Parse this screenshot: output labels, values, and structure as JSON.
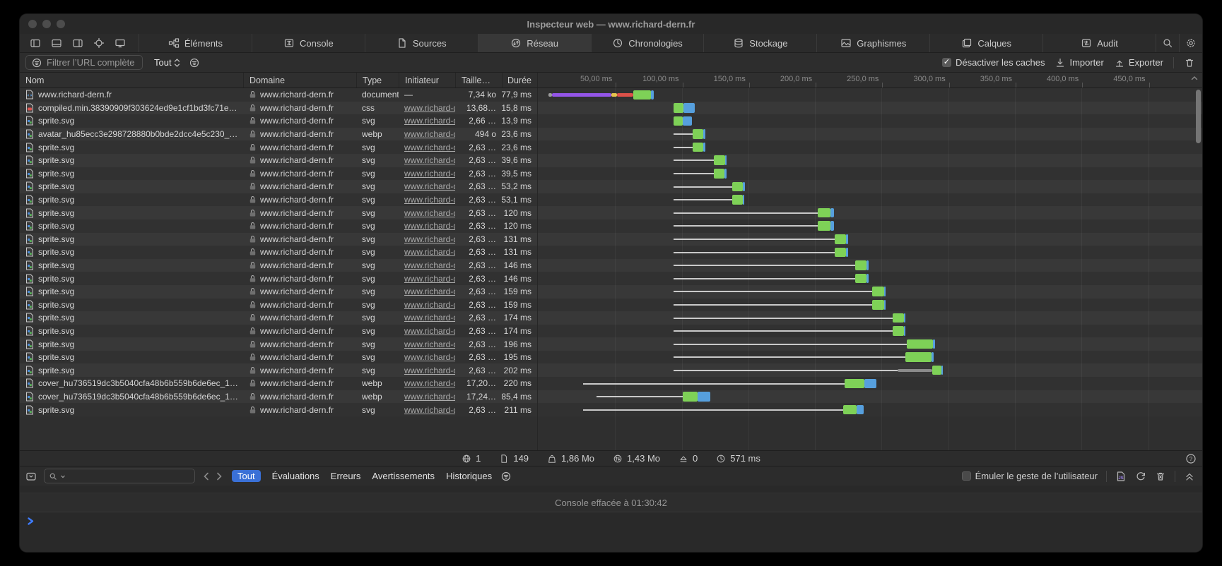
{
  "window": {
    "title": "Inspecteur web — www.richard-dern.fr"
  },
  "tabs": {
    "active": "Réseau",
    "items": [
      {
        "label": "Éléments",
        "icon": "elements-icon"
      },
      {
        "label": "Console",
        "icon": "console-icon"
      },
      {
        "label": "Sources",
        "icon": "sources-icon"
      },
      {
        "label": "Réseau",
        "icon": "network-icon"
      },
      {
        "label": "Chronologies",
        "icon": "timelines-icon"
      },
      {
        "label": "Stockage",
        "icon": "storage-icon"
      },
      {
        "label": "Graphismes",
        "icon": "graphics-icon"
      },
      {
        "label": "Calques",
        "icon": "layers-icon"
      },
      {
        "label": "Audit",
        "icon": "audit-icon"
      }
    ]
  },
  "network_toolbar": {
    "filter_placeholder": "Filtrer l’URL complète",
    "type_filter": "Tout",
    "disable_caches_label": "Désactiver les caches",
    "disable_caches_checked": "✓",
    "import_label": "Importer",
    "export_label": "Exporter"
  },
  "table": {
    "columns": {
      "name": "Nom",
      "domain": "Domaine",
      "type": "Type",
      "initiator": "Initiateur",
      "size": "Taille…",
      "duration": "Durée"
    },
    "ruler_ticks": [
      "50,00 ms",
      "100,00 ms",
      "150,0 ms",
      "200,0 ms",
      "250,0 ms",
      "300,0 ms",
      "350,0 ms",
      "400,0 ms",
      "450,0 ms"
    ],
    "rows": [
      {
        "name": "www.richard-dern.fr",
        "icon": "file-html-icon",
        "domain": "www.richard-dern.fr",
        "type": "document",
        "initiator": "—",
        "initiator_link": false,
        "size": "7,34 ko",
        "duration": "77,9 ms",
        "waterfall": [
          [
            "gray",
            0,
            2.5
          ],
          [
            "purple",
            2.5,
            47
          ],
          [
            "yellow",
            47,
            51.5
          ],
          [
            "red",
            51.5,
            63.5
          ],
          [
            "green",
            63.5,
            77
          ],
          [
            "blue",
            77,
            79
          ]
        ]
      },
      {
        "name": "compiled.min.38390909f303624ed9e1cf1bd3fc71e…",
        "icon": "file-css-icon",
        "domain": "www.richard-dern.fr",
        "type": "css",
        "initiator": "www.richard-d…",
        "initiator_link": true,
        "size": "13,68…",
        "duration": "15,8 ms",
        "waterfall": [
          [
            "green",
            94,
            101.5
          ],
          [
            "blue",
            101.5,
            109.8
          ]
        ]
      },
      {
        "name": "sprite.svg",
        "icon": "file-img-icon",
        "domain": "www.richard-dern.fr",
        "type": "svg",
        "initiator": "www.richard-d…",
        "initiator_link": true,
        "size": "2,66 …",
        "duration": "13,9 ms",
        "waterfall": [
          [
            "green",
            94,
            100.5
          ],
          [
            "blue",
            100.5,
            107.9
          ]
        ]
      },
      {
        "name": "avatar_hu85ecc3e298728880b0bde2dcc4e5c230_…",
        "icon": "file-img-icon",
        "domain": "www.richard-dern.fr",
        "type": "webp",
        "initiator": "www.richard-d…",
        "initiator_link": true,
        "size": "494 o",
        "duration": "23,6 ms",
        "waterfall": [
          [
            "line",
            94,
            108
          ],
          [
            "green",
            108,
            116
          ],
          [
            "blue",
            116,
            117.6
          ]
        ]
      },
      {
        "name": "sprite.svg",
        "icon": "file-img-icon",
        "domain": "www.richard-dern.fr",
        "type": "svg",
        "initiator": "www.richard-d…",
        "initiator_link": true,
        "size": "2,63 …",
        "duration": "23,6 ms",
        "waterfall": [
          [
            "line",
            94,
            108
          ],
          [
            "green",
            108,
            116
          ],
          [
            "blue",
            116,
            117.6
          ]
        ]
      },
      {
        "name": "sprite.svg",
        "icon": "file-img-icon",
        "domain": "www.richard-dern.fr",
        "type": "svg",
        "initiator": "www.richard-d…",
        "initiator_link": true,
        "size": "2,63 …",
        "duration": "39,6 ms",
        "waterfall": [
          [
            "line",
            94,
            124
          ],
          [
            "green",
            124,
            132.4
          ],
          [
            "blue",
            132.4,
            133.6
          ]
        ]
      },
      {
        "name": "sprite.svg",
        "icon": "file-img-icon",
        "domain": "www.richard-dern.fr",
        "type": "svg",
        "initiator": "www.richard-d…",
        "initiator_link": true,
        "size": "2,63 …",
        "duration": "39,5 ms",
        "waterfall": [
          [
            "line",
            94,
            124
          ],
          [
            "green",
            124,
            132.3
          ],
          [
            "blue",
            132.3,
            133.5
          ]
        ]
      },
      {
        "name": "sprite.svg",
        "icon": "file-img-icon",
        "domain": "www.richard-dern.fr",
        "type": "svg",
        "initiator": "www.richard-d…",
        "initiator_link": true,
        "size": "2,63 …",
        "duration": "53,2 ms",
        "waterfall": [
          [
            "line",
            94,
            138
          ],
          [
            "green",
            138,
            146
          ],
          [
            "blue",
            146,
            147.2
          ]
        ]
      },
      {
        "name": "sprite.svg",
        "icon": "file-img-icon",
        "domain": "www.richard-dern.fr",
        "type": "svg",
        "initiator": "www.richard-d…",
        "initiator_link": true,
        "size": "2,63 …",
        "duration": "53,1 ms",
        "waterfall": [
          [
            "line",
            94,
            138
          ],
          [
            "green",
            138,
            146
          ],
          [
            "blue",
            146,
            147.1
          ]
        ]
      },
      {
        "name": "sprite.svg",
        "icon": "file-img-icon",
        "domain": "www.richard-dern.fr",
        "type": "svg",
        "initiator": "www.richard-d…",
        "initiator_link": true,
        "size": "2,63 …",
        "duration": "120 ms",
        "waterfall": [
          [
            "line",
            94,
            202
          ],
          [
            "green",
            202,
            211.8
          ],
          [
            "blue",
            211.8,
            214
          ]
        ]
      },
      {
        "name": "sprite.svg",
        "icon": "file-img-icon",
        "domain": "www.richard-dern.fr",
        "type": "svg",
        "initiator": "www.richard-d…",
        "initiator_link": true,
        "size": "2,63 …",
        "duration": "120 ms",
        "waterfall": [
          [
            "line",
            94,
            202
          ],
          [
            "green",
            202,
            211.8
          ],
          [
            "blue",
            211.8,
            214
          ]
        ]
      },
      {
        "name": "sprite.svg",
        "icon": "file-img-icon",
        "domain": "www.richard-dern.fr",
        "type": "svg",
        "initiator": "www.richard-d…",
        "initiator_link": true,
        "size": "2,63 …",
        "duration": "131 ms",
        "waterfall": [
          [
            "line",
            94,
            215
          ],
          [
            "green",
            215,
            223.5
          ],
          [
            "blue",
            223.5,
            225
          ]
        ]
      },
      {
        "name": "sprite.svg",
        "icon": "file-img-icon",
        "domain": "www.richard-dern.fr",
        "type": "svg",
        "initiator": "www.richard-d…",
        "initiator_link": true,
        "size": "2,63 …",
        "duration": "131 ms",
        "waterfall": [
          [
            "line",
            94,
            215
          ],
          [
            "green",
            215,
            223.5
          ],
          [
            "blue",
            223.5,
            225
          ]
        ]
      },
      {
        "name": "sprite.svg",
        "icon": "file-img-icon",
        "domain": "www.richard-dern.fr",
        "type": "svg",
        "initiator": "www.richard-d…",
        "initiator_link": true,
        "size": "2,63 …",
        "duration": "146 ms",
        "waterfall": [
          [
            "line",
            94,
            230
          ],
          [
            "green",
            230,
            238.8
          ],
          [
            "blue",
            238.8,
            240
          ]
        ]
      },
      {
        "name": "sprite.svg",
        "icon": "file-img-icon",
        "domain": "www.richard-dern.fr",
        "type": "svg",
        "initiator": "www.richard-d…",
        "initiator_link": true,
        "size": "2,63 …",
        "duration": "146 ms",
        "waterfall": [
          [
            "line",
            94,
            230
          ],
          [
            "green",
            230,
            238.8
          ],
          [
            "blue",
            238.8,
            240
          ]
        ]
      },
      {
        "name": "sprite.svg",
        "icon": "file-img-icon",
        "domain": "www.richard-dern.fr",
        "type": "svg",
        "initiator": "www.richard-d…",
        "initiator_link": true,
        "size": "2,63 …",
        "duration": "159 ms",
        "waterfall": [
          [
            "line",
            94,
            243
          ],
          [
            "green",
            243,
            251.8
          ],
          [
            "blue",
            251.8,
            253
          ]
        ]
      },
      {
        "name": "sprite.svg",
        "icon": "file-img-icon",
        "domain": "www.richard-dern.fr",
        "type": "svg",
        "initiator": "www.richard-d…",
        "initiator_link": true,
        "size": "2,63 …",
        "duration": "159 ms",
        "waterfall": [
          [
            "line",
            94,
            243
          ],
          [
            "green",
            243,
            251.8
          ],
          [
            "blue",
            251.8,
            253
          ]
        ]
      },
      {
        "name": "sprite.svg",
        "icon": "file-img-icon",
        "domain": "www.richard-dern.fr",
        "type": "svg",
        "initiator": "www.richard-d…",
        "initiator_link": true,
        "size": "2,63 …",
        "duration": "174 ms",
        "waterfall": [
          [
            "line",
            94,
            258
          ],
          [
            "green",
            258,
            266.8
          ],
          [
            "blue",
            266.8,
            268
          ]
        ]
      },
      {
        "name": "sprite.svg",
        "icon": "file-img-icon",
        "domain": "www.richard-dern.fr",
        "type": "svg",
        "initiator": "www.richard-d…",
        "initiator_link": true,
        "size": "2,63 …",
        "duration": "174 ms",
        "waterfall": [
          [
            "line",
            94,
            258
          ],
          [
            "green",
            258,
            266.8
          ],
          [
            "blue",
            266.8,
            268
          ]
        ]
      },
      {
        "name": "sprite.svg",
        "icon": "file-img-icon",
        "domain": "www.richard-dern.fr",
        "type": "svg",
        "initiator": "www.richard-d…",
        "initiator_link": true,
        "size": "2,63 …",
        "duration": "196 ms",
        "waterfall": [
          [
            "line",
            94,
            269
          ],
          [
            "green",
            269,
            288.3
          ],
          [
            "blue",
            288.3,
            290
          ]
        ]
      },
      {
        "name": "sprite.svg",
        "icon": "file-img-icon",
        "domain": "www.richard-dern.fr",
        "type": "svg",
        "initiator": "www.richard-d…",
        "initiator_link": true,
        "size": "2,63 …",
        "duration": "195 ms",
        "waterfall": [
          [
            "line",
            94,
            268
          ],
          [
            "green",
            268,
            287.3
          ],
          [
            "blue",
            287.3,
            289
          ]
        ]
      },
      {
        "name": "sprite.svg",
        "icon": "file-img-icon",
        "domain": "www.richard-dern.fr",
        "type": "svg",
        "initiator": "www.richard-d…",
        "initiator_link": true,
        "size": "2,63 …",
        "duration": "202 ms",
        "waterfall": [
          [
            "line",
            94,
            262
          ],
          [
            "dark",
            262,
            288
          ],
          [
            "green",
            288,
            294.6
          ],
          [
            "blue",
            294.6,
            296
          ]
        ]
      },
      {
        "name": "cover_hu736519dc3b5040cfa48b6b559b6de6ec_1…",
        "icon": "file-img-icon",
        "domain": "www.richard-dern.fr",
        "type": "webp",
        "initiator": "www.richard-d…",
        "initiator_link": true,
        "size": "17,20…",
        "duration": "220 ms",
        "waterfall": [
          [
            "line",
            26,
            222
          ],
          [
            "green",
            222,
            237
          ],
          [
            "blue",
            237,
            246
          ]
        ]
      },
      {
        "name": "cover_hu736519dc3b5040cfa48b6b559b6de6ec_1…",
        "icon": "file-img-icon",
        "domain": "www.richard-dern.fr",
        "type": "webp",
        "initiator": "www.richard-d…",
        "initiator_link": true,
        "size": "17,24…",
        "duration": "85,4 ms",
        "waterfall": [
          [
            "line",
            36,
            101
          ],
          [
            "green",
            101,
            112
          ],
          [
            "blue",
            112,
            121.4
          ]
        ]
      },
      {
        "name": "sprite.svg",
        "icon": "file-img-icon",
        "domain": "www.richard-dern.fr",
        "type": "svg",
        "initiator": "www.richard-d…",
        "initiator_link": true,
        "size": "2,63 …",
        "duration": "211 ms",
        "waterfall": [
          [
            "line",
            26,
            221
          ],
          [
            "green",
            221,
            231
          ],
          [
            "blue",
            231,
            236.5
          ]
        ]
      }
    ]
  },
  "waterfall_colors": {
    "green": "#7ed157",
    "blue": "#569fdd",
    "purple": "#9455e8",
    "yellow": "#e5c24b",
    "red": "#dc5149",
    "gray": "#9b9b9b"
  },
  "status_bar": {
    "items": [
      {
        "icon": "globe-icon",
        "value": "1"
      },
      {
        "icon": "document-count-icon",
        "value": "149"
      },
      {
        "icon": "resources-icon",
        "value": "1,86 Mo"
      },
      {
        "icon": "transfer-icon",
        "value": "1,43 Mo"
      },
      {
        "icon": "upload-icon",
        "value": "0"
      },
      {
        "icon": "time-icon",
        "value": "571 ms"
      }
    ]
  },
  "console": {
    "scopes": [
      "Tout",
      "Évaluations",
      "Erreurs",
      "Avertissements",
      "Historiques"
    ],
    "active_scope": "Tout",
    "emulate_label": "Émuler le geste de l’utilisateur",
    "message": "Console effacée à 01:30:42"
  }
}
